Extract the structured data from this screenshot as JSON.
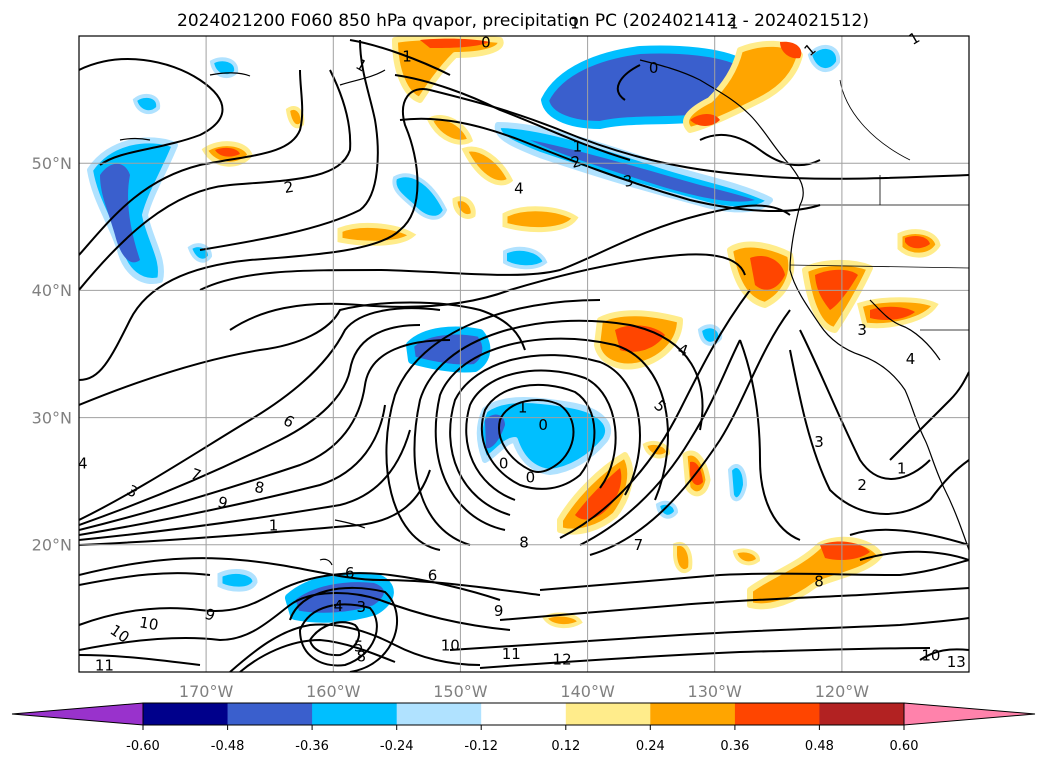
{
  "title": "2024021200 F060 850 hPa qvapor, precipitation PC (2024021412 - 2024021512)",
  "map": {
    "lon_range": [
      -180,
      -110
    ],
    "lat_range": [
      10,
      60
    ],
    "lon_ticks": [
      {
        "value": -170,
        "label": "170°W"
      },
      {
        "value": -160,
        "label": "160°W"
      },
      {
        "value": -150,
        "label": "150°W"
      },
      {
        "value": -140,
        "label": "140°W"
      },
      {
        "value": -130,
        "label": "130°W"
      },
      {
        "value": -120,
        "label": "120°W"
      }
    ],
    "lat_ticks": [
      {
        "value": 20,
        "label": "20°N"
      },
      {
        "value": 30,
        "label": "30°N"
      },
      {
        "value": 40,
        "label": "40°N"
      },
      {
        "value": 50,
        "label": "50°N"
      }
    ],
    "gridlines": true,
    "grid_color": "#a0a0a0",
    "tick_label_color": "#808080"
  },
  "colorbar": {
    "levels": [
      "-0.60",
      "-0.48",
      "-0.36",
      "-0.24",
      "-0.12",
      "0.12",
      "0.24",
      "0.36",
      "0.48",
      "0.60"
    ],
    "colors": [
      "#9932cc",
      "#00008b",
      "#3a5fcd",
      "#00bfff",
      "#b0e2ff",
      "#ffffff",
      "#ffec8b",
      "#ffa500",
      "#ff4500",
      "#b22222",
      "#ff82ab"
    ],
    "extend": "both"
  },
  "contour_labels": [
    {
      "text": "1",
      "lon": -157.8,
      "lat": 57.7,
      "rot": 30
    },
    {
      "text": "1",
      "lon": -154.2,
      "lat": 58.4,
      "rot": 0
    },
    {
      "text": "1",
      "lon": -141.0,
      "lat": 61.0,
      "rot": 0
    },
    {
      "text": "1",
      "lon": -128.5,
      "lat": 61.0,
      "rot": 0
    },
    {
      "text": "1",
      "lon": -122.5,
      "lat": 58.9,
      "rot": -40
    },
    {
      "text": "1",
      "lon": -114.3,
      "lat": 59.8,
      "rot": -30
    },
    {
      "text": "1",
      "lon": -140.8,
      "lat": 51.3,
      "rot": 0
    },
    {
      "text": "2",
      "lon": -140.9,
      "lat": 50.1,
      "rot": -15
    },
    {
      "text": "3",
      "lon": -136.8,
      "lat": 48.6,
      "rot": -15
    },
    {
      "text": "4",
      "lon": -145.4,
      "lat": 48.0,
      "rot": 0
    },
    {
      "text": "2",
      "lon": -163.5,
      "lat": 48.1,
      "rot": -10
    },
    {
      "text": "0",
      "lon": -134.8,
      "lat": 57.5,
      "rot": 0
    },
    {
      "text": "0",
      "lon": -148.0,
      "lat": 59.5,
      "rot": 0
    },
    {
      "text": "4",
      "lon": -132.5,
      "lat": 35.3,
      "rot": 20
    },
    {
      "text": "5",
      "lon": -134.3,
      "lat": 30.9,
      "rot": 45
    },
    {
      "text": "6",
      "lon": -163.5,
      "lat": 29.7,
      "rot": 30
    },
    {
      "text": "7",
      "lon": -170.8,
      "lat": 25.5,
      "rot": 20
    },
    {
      "text": "8",
      "lon": -165.8,
      "lat": 24.5,
      "rot": 10
    },
    {
      "text": "9",
      "lon": -168.7,
      "lat": 23.3,
      "rot": 15
    },
    {
      "text": "3",
      "lon": -175.8,
      "lat": 24.2,
      "rot": 30
    },
    {
      "text": "1",
      "lon": -164.7,
      "lat": 21.5,
      "rot": 0
    },
    {
      "text": "4",
      "lon": -179.7,
      "lat": 26.4,
      "rot": 0
    },
    {
      "text": "1",
      "lon": -145.1,
      "lat": 30.8,
      "rot": 0
    },
    {
      "text": "0",
      "lon": -143.5,
      "lat": 29.4,
      "rot": 0
    },
    {
      "text": "0",
      "lon": -146.6,
      "lat": 26.4,
      "rot": 0
    },
    {
      "text": "0",
      "lon": -144.5,
      "lat": 25.3,
      "rot": 0
    },
    {
      "text": "8",
      "lon": -145.0,
      "lat": 20.2,
      "rot": 0
    },
    {
      "text": "7",
      "lon": -136.0,
      "lat": 20.0,
      "rot": 0
    },
    {
      "text": "6",
      "lon": -158.7,
      "lat": 17.8,
      "rot": 0
    },
    {
      "text": "6",
      "lon": -152.2,
      "lat": 17.6,
      "rot": 0
    },
    {
      "text": "4",
      "lon": -159.6,
      "lat": 15.2,
      "rot": 0
    },
    {
      "text": "3",
      "lon": -157.8,
      "lat": 15.1,
      "rot": 0
    },
    {
      "text": "5",
      "lon": -158.0,
      "lat": 12.0,
      "rot": 0
    },
    {
      "text": "8",
      "lon": -157.8,
      "lat": 11.2,
      "rot": 0
    },
    {
      "text": "9",
      "lon": -169.7,
      "lat": 14.5,
      "rot": 20
    },
    {
      "text": "10",
      "lon": -176.8,
      "lat": 13.0,
      "rot": 35
    },
    {
      "text": "10",
      "lon": -174.5,
      "lat": 13.8,
      "rot": 10
    },
    {
      "text": "9",
      "lon": -147.0,
      "lat": 14.8,
      "rot": 0
    },
    {
      "text": "10",
      "lon": -150.8,
      "lat": 12.1,
      "rot": 0
    },
    {
      "text": "11",
      "lon": -146.0,
      "lat": 11.4,
      "rot": 0
    },
    {
      "text": "12",
      "lon": -142.0,
      "lat": 11.0,
      "rot": 0
    },
    {
      "text": "11",
      "lon": -178.0,
      "lat": 10.5,
      "rot": 0
    },
    {
      "text": "8",
      "lon": -121.8,
      "lat": 17.1,
      "rot": 0
    },
    {
      "text": "3",
      "lon": -121.8,
      "lat": 28.1,
      "rot": 0
    },
    {
      "text": "2",
      "lon": -118.4,
      "lat": 24.7,
      "rot": 0
    },
    {
      "text": "1",
      "lon": -115.3,
      "lat": 26.0,
      "rot": 0
    },
    {
      "text": "3",
      "lon": -118.4,
      "lat": 36.9,
      "rot": 0
    },
    {
      "text": "4",
      "lon": -114.6,
      "lat": 34.6,
      "rot": 0
    },
    {
      "text": "13",
      "lon": -111.0,
      "lat": 10.8,
      "rot": 0
    },
    {
      "text": "10",
      "lon": -113.0,
      "lat": 11.3,
      "rot": 0
    }
  ]
}
